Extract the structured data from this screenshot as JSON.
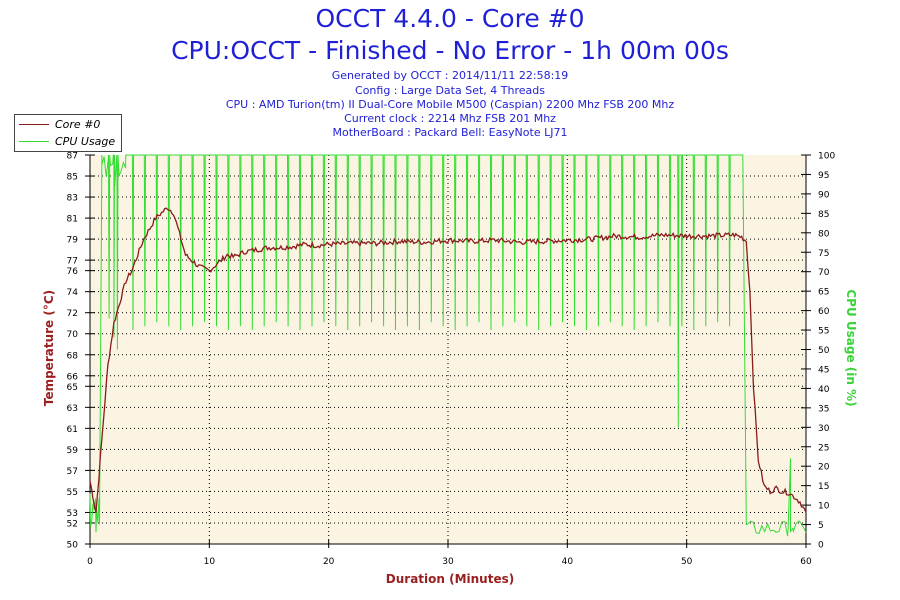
{
  "header": {
    "title": "OCCT 4.4.0 - Core #0",
    "subtitle": "CPU:OCCT - Finished - No Error - 1h 00m 00s",
    "info_lines": [
      "Generated by OCCT : 2014/11/11 22:58:19",
      "Config : Large Data Set, 4 Threads",
      "CPU : AMD Turion(tm) II Dual-Core Mobile M500 (Caspian) 2200 Mhz FSB 200 Mhz",
      "Current clock : 2214 Mhz FSB 201 Mhz",
      "MotherBoard : Packard Bell: EasyNote LJ71"
    ]
  },
  "colors": {
    "background": "#ffffff",
    "plot_background": "#fbf4e3",
    "temperature": "#8b1a1a",
    "cpu_usage": "#33dd33",
    "text_blue": "#1f1fd6",
    "axis_title_red": "#9a2020"
  },
  "chart_data": {
    "type": "line",
    "xlabel": "Duration (Minutes)",
    "ylabel": "Temperature (°C)",
    "y2label": "CPU Usage (in %)",
    "xlim": [
      0,
      60
    ],
    "ylim": [
      50,
      87
    ],
    "y2lim": [
      0,
      100
    ],
    "x_ticks": [
      0,
      10,
      20,
      30,
      40,
      50,
      60
    ],
    "y_ticks": [
      50,
      52,
      53,
      55,
      57,
      59,
      61,
      63,
      65,
      66,
      68,
      70,
      72,
      74,
      76,
      77,
      79,
      81,
      83,
      85,
      87
    ],
    "y2_ticks": [
      0,
      5,
      10,
      15,
      20,
      25,
      30,
      35,
      40,
      45,
      50,
      55,
      60,
      65,
      70,
      75,
      80,
      85,
      90,
      95,
      100
    ],
    "grid": true,
    "legend_position": "top-left",
    "series": [
      {
        "name": "Core #0",
        "axis": "left",
        "x": [
          0,
          0.5,
          1,
          1.5,
          2,
          2.5,
          3,
          3.5,
          4,
          4.5,
          5,
          5.5,
          6,
          6.5,
          7,
          7.5,
          8,
          8.5,
          9,
          9.5,
          10,
          10.5,
          11,
          11.5,
          12,
          13,
          14,
          15,
          16,
          17,
          18,
          19,
          20,
          22,
          24,
          26,
          28,
          30,
          32,
          34,
          36,
          38,
          40,
          42,
          44,
          46,
          48,
          50,
          52,
          54,
          54.6,
          55,
          55.3,
          55.6,
          56,
          56.5,
          57,
          57.5,
          58,
          58.5,
          59,
          59.5,
          60
        ],
        "values": [
          56,
          53,
          60,
          67,
          71,
          73,
          75,
          76,
          77.5,
          79,
          80,
          81,
          81.5,
          82,
          81.5,
          79.5,
          77.5,
          77,
          76.5,
          76.2,
          76,
          76.5,
          77,
          77.5,
          77.3,
          77.8,
          78,
          78.2,
          78.2,
          78.3,
          78.5,
          78.4,
          78.5,
          78.6,
          78.6,
          78.8,
          78.7,
          78.9,
          78.8,
          78.9,
          78.7,
          78.8,
          78.9,
          79,
          79.3,
          79.2,
          79.4,
          79.3,
          79.3,
          79.4,
          79.2,
          78.8,
          74,
          65,
          58,
          55.5,
          55,
          55.3,
          55,
          54.9,
          54.5,
          54,
          53
        ]
      },
      {
        "name": "CPU Usage",
        "axis": "right",
        "x": [
          0,
          0.5,
          0.8,
          1,
          1.3,
          2,
          3,
          54.4,
          54.7,
          55,
          58.5,
          58.7,
          58.9,
          60
        ],
        "values": [
          13,
          3,
          5,
          100,
          96,
          100,
          100,
          100,
          100,
          5,
          4,
          22,
          4,
          3
        ],
        "dip_x": [
          1.6,
          2.0,
          2.3,
          3.6,
          4.6,
          5.6,
          6.6,
          7.6,
          8.6,
          9.6,
          10.6,
          11.6,
          12.6,
          13.6,
          14.6,
          15.6,
          16.6,
          17.6,
          18.6,
          19.6,
          20.6,
          21.6,
          22.6,
          23.6,
          24.6,
          25.6,
          26.6,
          27.6,
          28.6,
          29.6,
          30.6,
          31.6,
          32.6,
          33.6,
          34.6,
          35.6,
          36.6,
          37.6,
          38.6,
          39.6,
          40.6,
          41.6,
          42.6,
          43.6,
          44.6,
          45.6,
          46.6,
          47.6,
          48.6,
          49.3,
          49.6,
          50.6,
          51.6,
          52.6,
          53.6
        ],
        "dip_values": [
          58,
          53,
          50,
          55,
          56,
          57,
          56,
          55,
          56,
          57,
          56,
          55,
          56,
          55,
          56,
          57,
          56,
          55,
          56,
          57,
          56,
          55,
          56,
          57,
          56,
          55,
          56,
          55,
          57,
          56,
          55,
          56,
          57,
          55,
          56,
          57,
          56,
          55,
          56,
          57,
          56,
          55,
          56,
          57,
          56,
          55,
          56,
          57,
          56,
          30,
          56,
          55,
          56,
          57,
          56
        ]
      }
    ]
  }
}
